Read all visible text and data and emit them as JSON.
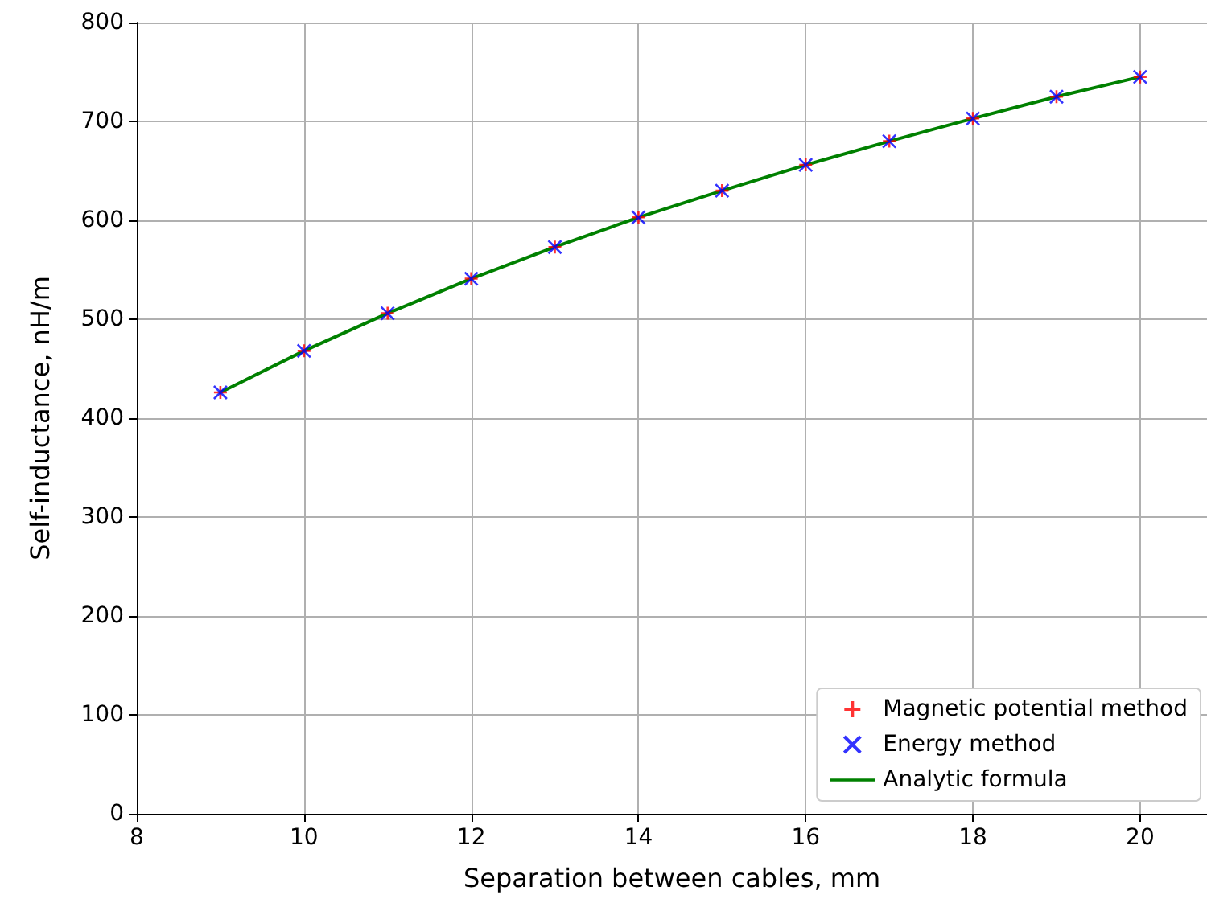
{
  "chart_data": {
    "type": "line",
    "xlabel": "Separation between cables, mm",
    "ylabel": "Self-inductance, nH/m",
    "x": [
      9,
      10,
      11,
      12,
      13,
      14,
      15,
      16,
      17,
      18,
      19,
      20
    ],
    "series": [
      {
        "name": "Magnetic potential method",
        "type": "scatter",
        "marker": "cross",
        "color": "#ff0000",
        "values": [
          426,
          468,
          506,
          541,
          573,
          603,
          630,
          656,
          680,
          703,
          725,
          745
        ]
      },
      {
        "name": "Energy method",
        "type": "scatter",
        "marker": "x",
        "color": "#0000ff",
        "values": [
          426,
          468,
          506,
          541,
          573,
          603,
          630,
          656,
          680,
          703,
          725,
          745
        ]
      },
      {
        "name": "Analytic formula",
        "marker": "none",
        "line_style": "solid",
        "color": "#008000",
        "values": [
          426,
          468,
          506,
          541,
          573,
          603,
          630,
          656,
          680,
          703,
          725,
          745
        ]
      }
    ],
    "xlim": [
      8,
      20.8
    ],
    "xticks": [
      8,
      10,
      12,
      14,
      16,
      18,
      20
    ],
    "ylim": [
      0,
      800
    ],
    "yticks": [
      0,
      100,
      200,
      300,
      400,
      500,
      600,
      700,
      800
    ],
    "grid": true,
    "legend": "bottom right"
  }
}
